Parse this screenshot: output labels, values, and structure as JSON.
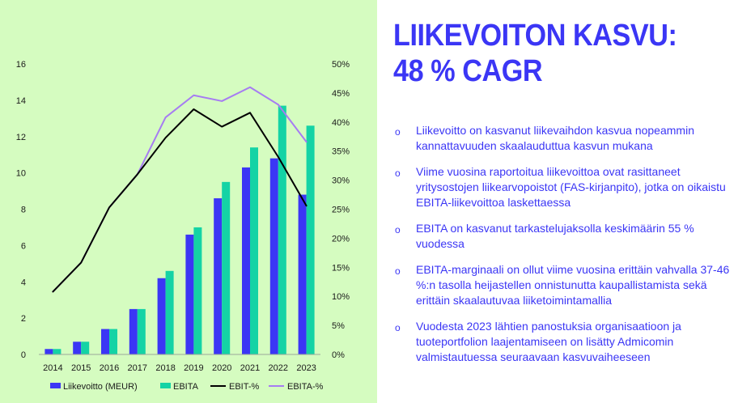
{
  "headline": {
    "line1": "LIIKEVOITON KASVU:",
    "line2": "48 % CAGR"
  },
  "bullet_symbol": "o",
  "bullets": [
    "Liikevoitto on kasvanut liikevaihdon kasvua nopeammin kannattavuuden skaalauduttua kasvun mukana",
    "Viime vuosina raportoitua liikevoittoa ovat rasittaneet yritysostojen liikearvopoistot (FAS-kirjanpito), jotka on oikaistu EBITA-liikevoittoa laskettaessa",
    "EBITA on kasvanut tarkastelujaksolla keskimäärin 55 % vuodessa",
    "EBITA-marginaali on ollut viime vuosina erittäin vahvalla 37-46 %:n tasolla heijastellen onnistunutta kaupallistamista sekä erittäin skaalautuvaa liiketoimintamallia",
    "Vuodesta 2023 lähtien panostuksia organisaatioon ja tuoteportfolion laajentamiseen on lisätty Admicomin valmistautuessa seuraavaan kasvuvaiheeseen"
  ],
  "colors": {
    "accent": "#3b36f5",
    "ebita_bar": "#14d3a5",
    "ebit_line": "#000000",
    "ebita_line": "#a67cf2",
    "chart_bg": "#d5fcc0"
  },
  "chart_data": {
    "type": "bar",
    "categories": [
      "2014",
      "2015",
      "2016",
      "2017",
      "2018",
      "2019",
      "2020",
      "2021",
      "2022",
      "2023"
    ],
    "y_left": {
      "range": [
        0,
        16
      ],
      "ticks": [
        "0",
        "2",
        "4",
        "6",
        "8",
        "10",
        "12",
        "14",
        "16"
      ]
    },
    "y_right": {
      "range": [
        0,
        50
      ],
      "ticks": [
        "0%",
        "5%",
        "10%",
        "15%",
        "20%",
        "25%",
        "30%",
        "35%",
        "40%",
        "45%",
        "50%"
      ]
    },
    "series": [
      {
        "name": "Liikevoitto (MEUR)",
        "kind": "bar",
        "axis": "left",
        "values": [
          0.3,
          0.7,
          1.4,
          2.5,
          4.2,
          6.6,
          8.6,
          10.3,
          10.8,
          8.8
        ]
      },
      {
        "name": "EBITA",
        "kind": "bar",
        "axis": "left",
        "values": [
          0.3,
          0.7,
          1.4,
          2.5,
          4.6,
          7.0,
          9.5,
          11.4,
          13.7,
          12.6
        ]
      },
      {
        "name": "EBIT-%",
        "kind": "line",
        "axis": "right",
        "values": [
          10.8,
          15.8,
          25.3,
          31.0,
          37.3,
          42.2,
          39.2,
          41.6,
          34.0,
          25.6
        ]
      },
      {
        "name": "EBITA-%",
        "kind": "line",
        "axis": "right",
        "values": [
          10.8,
          15.8,
          25.3,
          31.0,
          40.8,
          44.6,
          43.6,
          46.0,
          43.0,
          36.6
        ]
      }
    ],
    "legend": [
      "Liikevoitto (MEUR)",
      "EBITA",
      "EBIT-%",
      "EBITA-%"
    ],
    "legend_position": "bottom"
  }
}
